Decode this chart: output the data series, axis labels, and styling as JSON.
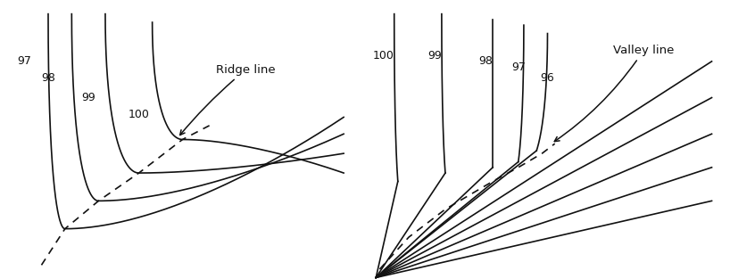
{
  "fig_width": 8.18,
  "fig_height": 3.13,
  "dpi": 100,
  "bg_color": "#ffffff",
  "line_color": "#111111",
  "line_width": 1.2
}
